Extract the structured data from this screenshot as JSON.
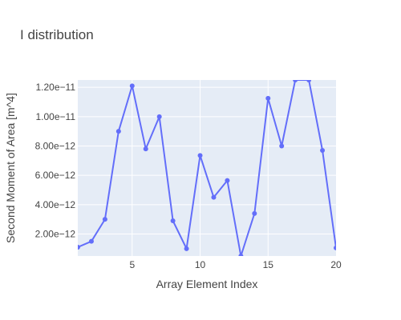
{
  "chart_data": {
    "type": "line",
    "title": "I distribution",
    "xlabel": "Array Element Index",
    "ylabel": "Second Moment of Area [m^4]",
    "xlim": [
      1,
      20
    ],
    "ylim": [
      5e-13,
      1.25e-11
    ],
    "x_ticks": [
      5,
      10,
      15,
      20
    ],
    "x_tick_labels": [
      "5",
      "10",
      "15",
      "20"
    ],
    "y_ticks": [
      2e-12,
      4e-12,
      6e-12,
      8e-12,
      1e-11,
      1.2e-11
    ],
    "y_tick_labels": [
      "2.00e−12",
      "4.00e−12",
      "6.00e−12",
      "8.00e−12",
      "1.00e−11",
      "1.20e−11"
    ],
    "grid": true,
    "series": [
      {
        "color": "#636efa",
        "mode": "lines+markers",
        "x": [
          1,
          2,
          3,
          4,
          5,
          6,
          7,
          8,
          9,
          10,
          11,
          12,
          13,
          14,
          15,
          16,
          17,
          18,
          19,
          20
        ],
        "y": [
          1.1e-12,
          1.5e-12,
          3e-12,
          9e-12,
          1.21e-11,
          7.8e-12,
          1e-11,
          2.9e-12,
          1e-12,
          7.35e-12,
          4.5e-12,
          5.65e-12,
          5e-13,
          3.4e-12,
          1.125e-11,
          8e-12,
          1.25e-11,
          1.25e-11,
          7.7e-12,
          1.05e-12
        ]
      }
    ]
  }
}
